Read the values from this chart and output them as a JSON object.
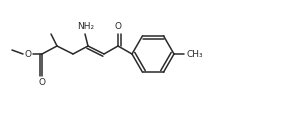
{
  "bg_color": "#ffffff",
  "line_color": "#2a2a2a",
  "lw": 1.1,
  "figsize": [
    2.81,
    1.15
  ],
  "dpi": 100,
  "xlim": [
    0,
    281
  ],
  "ylim": [
    0,
    115
  ],
  "nh2": "NH₂",
  "o_label": "O",
  "ch3_label": "CH₃",
  "fs": 6.5
}
